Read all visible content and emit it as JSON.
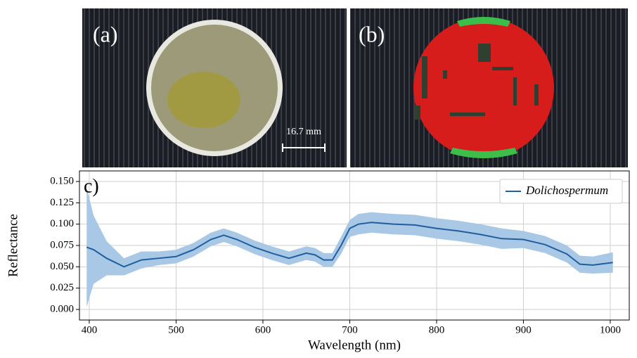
{
  "images": [
    {
      "label": "(a)",
      "scale": "16.7 mm"
    },
    {
      "label": "(b)"
    }
  ],
  "chart_data": {
    "type": "line",
    "annotation": "c)",
    "xlabel": "Wavelength (nm)",
    "ylabel": "Reflectance",
    "x": [
      397,
      405,
      420,
      440,
      460,
      480,
      500,
      520,
      540,
      555,
      570,
      590,
      610,
      630,
      650,
      660,
      670,
      680,
      690,
      700,
      710,
      725,
      750,
      775,
      800,
      825,
      850,
      875,
      900,
      925,
      950,
      965,
      980,
      1003
    ],
    "series": [
      {
        "name": "Dolichospermum",
        "color": "#1f5f9e",
        "band_color": "#a9c8e6",
        "values": [
          0.073,
          0.07,
          0.06,
          0.05,
          0.058,
          0.06,
          0.062,
          0.07,
          0.082,
          0.087,
          0.082,
          0.073,
          0.066,
          0.06,
          0.066,
          0.064,
          0.058,
          0.058,
          0.075,
          0.095,
          0.1,
          0.102,
          0.1,
          0.099,
          0.095,
          0.092,
          0.088,
          0.083,
          0.082,
          0.076,
          0.065,
          0.053,
          0.052,
          0.055
        ],
        "error": [
          0.07,
          0.04,
          0.02,
          0.01,
          0.01,
          0.008,
          0.008,
          0.008,
          0.008,
          0.008,
          0.008,
          0.008,
          0.008,
          0.008,
          0.008,
          0.008,
          0.008,
          0.008,
          0.01,
          0.01,
          0.012,
          0.012,
          0.012,
          0.012,
          0.012,
          0.012,
          0.012,
          0.012,
          0.01,
          0.01,
          0.01,
          0.01,
          0.01,
          0.012
        ]
      }
    ],
    "xlim": [
      388.7,
      1021.9
    ],
    "xticks": [
      400,
      500,
      600,
      700,
      800,
      900,
      1000
    ],
    "ylim": [
      -0.0124,
      0.1624
    ],
    "yticks": [
      {
        "value": 0,
        "label": "0.000"
      },
      {
        "value": 0.025,
        "label": "0.025"
      },
      {
        "value": 0.05,
        "label": "0.050"
      },
      {
        "value": 0.075,
        "label": "0.075"
      },
      {
        "value": 0.1,
        "label": "0.100"
      },
      {
        "value": 0.125,
        "label": "0.125"
      },
      {
        "value": 0.15,
        "label": "0.150"
      }
    ],
    "grid": true,
    "legend": "upper right"
  }
}
